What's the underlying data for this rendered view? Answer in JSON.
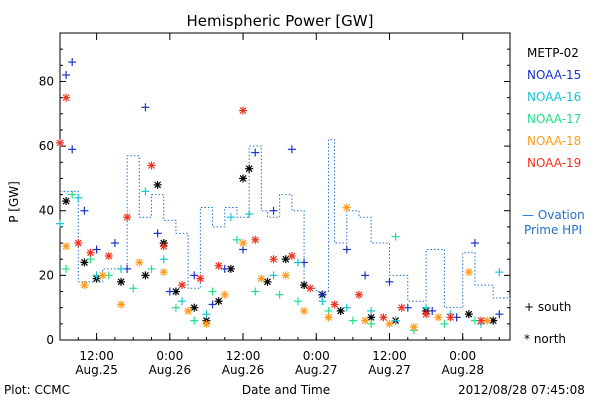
{
  "chart_data": {
    "type": "scatter",
    "title": "Hemispheric Power [GW]",
    "ylabel": "P [GW]",
    "xlabel": "Date and Time",
    "ylim": [
      0,
      95
    ],
    "yticks": [
      0,
      20,
      40,
      60,
      80
    ],
    "xlim": [
      "2012-08-25 06:00",
      "2012-08-28 07:45"
    ],
    "xticks": [
      {
        "at": "2012-08-25 12:00",
        "time": "12:00",
        "date": "Aug.25"
      },
      {
        "at": "2012-08-26 00:00",
        "time": "0:00",
        "date": "Aug.26"
      },
      {
        "at": "2012-08-26 12:00",
        "time": "12:00",
        "date": "Aug.26"
      },
      {
        "at": "2012-08-27 00:00",
        "time": "0:00",
        "date": "Aug.27"
      },
      {
        "at": "2012-08-27 12:00",
        "time": "12:00",
        "date": "Aug.27"
      },
      {
        "at": "2012-08-28 00:00",
        "time": "0:00",
        "date": "Aug.28"
      }
    ],
    "footer_left": "Plot: CCMC",
    "footer_right": "2012/08/28 07:45:08",
    "legend_placement": "right",
    "symbol_legend": [
      {
        "symbol": "+",
        "label": "south"
      },
      {
        "symbol": "*",
        "label": "north"
      }
    ],
    "ovation_label_line1": "— Ovation",
    "ovation_label_line2": "Prime HPI",
    "ovation_color": "#1f6fd0",
    "ovation": {
      "name": "Ovation Prime HPI",
      "t": [
        "2012-08-25 06:00",
        "2012-08-25 09:00",
        "2012-08-25 13:00",
        "2012-08-25 17:00",
        "2012-08-25 19:00",
        "2012-08-25 21:00",
        "2012-08-25 23:00",
        "2012-08-26 01:00",
        "2012-08-26 03:00",
        "2012-08-26 05:00",
        "2012-08-26 07:00",
        "2012-08-26 09:00",
        "2012-08-26 11:00",
        "2012-08-26 13:00",
        "2012-08-26 15:00",
        "2012-08-26 16:00",
        "2012-08-26 18:00",
        "2012-08-26 20:00",
        "2012-08-26 22:00",
        "2012-08-27 00:00",
        "2012-08-27 02:00",
        "2012-08-27 03:00",
        "2012-08-27 05:00",
        "2012-08-27 07:00",
        "2012-08-27 09:00",
        "2012-08-27 12:00",
        "2012-08-27 15:00",
        "2012-08-27 18:00",
        "2012-08-27 21:00",
        "2012-08-28 00:00",
        "2012-08-28 02:00",
        "2012-08-28 05:00",
        "2012-08-28 07:45"
      ],
      "v": [
        46,
        18,
        22,
        57,
        38,
        45,
        37,
        33,
        16,
        41,
        35,
        41,
        38,
        60,
        40,
        38,
        45,
        40,
        16,
        15,
        62,
        30,
        40,
        38,
        30,
        20,
        12,
        28,
        10,
        27,
        17,
        13,
        10
      ]
    },
    "series": [
      {
        "name": "METP-02",
        "color": "#000000",
        "symbol": "*",
        "points": [
          [
            "2012-08-25 07:00",
            43
          ],
          [
            "2012-08-25 10:00",
            24
          ],
          [
            "2012-08-25 12:00",
            19
          ],
          [
            "2012-08-25 16:00",
            18
          ],
          [
            "2012-08-25 20:00",
            20
          ],
          [
            "2012-08-25 22:00",
            48
          ],
          [
            "2012-08-25 23:00",
            30
          ],
          [
            "2012-08-26 01:00",
            15
          ],
          [
            "2012-08-26 04:00",
            10
          ],
          [
            "2012-08-26 06:00",
            6
          ],
          [
            "2012-08-26 08:00",
            12
          ],
          [
            "2012-08-26 10:00",
            22
          ],
          [
            "2012-08-26 12:00",
            50
          ],
          [
            "2012-08-26 13:00",
            53
          ],
          [
            "2012-08-26 16:00",
            18
          ],
          [
            "2012-08-26 19:00",
            25
          ],
          [
            "2012-08-26 22:00",
            17
          ],
          [
            "2012-08-27 01:00",
            14
          ],
          [
            "2012-08-27 04:00",
            9
          ],
          [
            "2012-08-27 09:00",
            7
          ],
          [
            "2012-08-27 13:00",
            6
          ],
          [
            "2012-08-27 18:00",
            9
          ],
          [
            "2012-08-28 01:00",
            8
          ],
          [
            "2012-08-28 05:00",
            6
          ]
        ]
      },
      {
        "name": "NOAA-15",
        "color": "#1a33cc",
        "symbol": "+",
        "points": [
          [
            "2012-08-25 07:00",
            82
          ],
          [
            "2012-08-25 08:00",
            86
          ],
          [
            "2012-08-25 08:00",
            59
          ],
          [
            "2012-08-25 10:00",
            40
          ],
          [
            "2012-08-25 12:00",
            28
          ],
          [
            "2012-08-25 15:00",
            30
          ],
          [
            "2012-08-25 17:00",
            22
          ],
          [
            "2012-08-25 20:00",
            72
          ],
          [
            "2012-08-25 22:00",
            33
          ],
          [
            "2012-08-26 00:00",
            15
          ],
          [
            "2012-08-26 04:00",
            20
          ],
          [
            "2012-08-26 07:00",
            11
          ],
          [
            "2012-08-26 09:00",
            22
          ],
          [
            "2012-08-26 12:00",
            28
          ],
          [
            "2012-08-26 14:00",
            58
          ],
          [
            "2012-08-26 17:00",
            40
          ],
          [
            "2012-08-26 20:00",
            59
          ],
          [
            "2012-08-26 22:00",
            24
          ],
          [
            "2012-08-27 01:00",
            14
          ],
          [
            "2012-08-27 05:00",
            28
          ],
          [
            "2012-08-27 08:00",
            20
          ],
          [
            "2012-08-27 12:00",
            18
          ],
          [
            "2012-08-27 15:00",
            10
          ],
          [
            "2012-08-27 19:00",
            9
          ],
          [
            "2012-08-27 23:00",
            7
          ],
          [
            "2012-08-28 02:00",
            30
          ],
          [
            "2012-08-28 06:00",
            8
          ]
        ]
      },
      {
        "name": "NOAA-16",
        "color": "#19c3d6",
        "symbol": "+",
        "points": [
          [
            "2012-08-25 06:00",
            36
          ],
          [
            "2012-08-25 09:00",
            44
          ],
          [
            "2012-08-25 12:00",
            20
          ],
          [
            "2012-08-25 16:00",
            22
          ],
          [
            "2012-08-25 20:00",
            46
          ],
          [
            "2012-08-25 23:00",
            25
          ],
          [
            "2012-08-26 02:00",
            12
          ],
          [
            "2012-08-26 06:00",
            8
          ],
          [
            "2012-08-26 10:00",
            38
          ],
          [
            "2012-08-26 13:00",
            39
          ],
          [
            "2012-08-26 17:00",
            20
          ],
          [
            "2012-08-26 21:00",
            24
          ],
          [
            "2012-08-27 01:00",
            12
          ],
          [
            "2012-08-27 05:00",
            10
          ],
          [
            "2012-08-27 09:00",
            9
          ],
          [
            "2012-08-27 13:00",
            6
          ],
          [
            "2012-08-27 18:00",
            10
          ],
          [
            "2012-08-27 22:00",
            8
          ],
          [
            "2012-08-28 03:00",
            5
          ],
          [
            "2012-08-28 06:00",
            21
          ]
        ]
      },
      {
        "name": "NOAA-17",
        "color": "#22e08a",
        "symbol": "+",
        "points": [
          [
            "2012-08-25 07:00",
            22
          ],
          [
            "2012-08-25 08:00",
            45
          ],
          [
            "2012-08-25 11:00",
            25
          ],
          [
            "2012-08-25 14:00",
            20
          ],
          [
            "2012-08-25 18:00",
            16
          ],
          [
            "2012-08-25 21:00",
            22
          ],
          [
            "2012-08-26 01:00",
            10
          ],
          [
            "2012-08-26 04:00",
            6
          ],
          [
            "2012-08-26 07:00",
            15
          ],
          [
            "2012-08-26 11:00",
            31
          ],
          [
            "2012-08-26 14:00",
            15
          ],
          [
            "2012-08-26 18:00",
            14
          ],
          [
            "2012-08-26 21:00",
            12
          ],
          [
            "2012-08-27 02:00",
            9
          ],
          [
            "2012-08-27 06:00",
            6
          ],
          [
            "2012-08-27 09:00",
            5
          ],
          [
            "2012-08-27 13:00",
            32
          ],
          [
            "2012-08-27 16:00",
            3
          ],
          [
            "2012-08-27 21:00",
            5
          ],
          [
            "2012-08-28 02:00",
            6
          ]
        ]
      },
      {
        "name": "NOAA-18",
        "color": "#ff9a1a",
        "symbol": "*",
        "points": [
          [
            "2012-08-25 07:00",
            29
          ],
          [
            "2012-08-25 10:00",
            17
          ],
          [
            "2012-08-25 13:00",
            20
          ],
          [
            "2012-08-25 16:00",
            11
          ],
          [
            "2012-08-25 19:00",
            24
          ],
          [
            "2012-08-25 23:00",
            21
          ],
          [
            "2012-08-26 03:00",
            9
          ],
          [
            "2012-08-26 06:00",
            5
          ],
          [
            "2012-08-26 09:00",
            14
          ],
          [
            "2012-08-26 12:00",
            30
          ],
          [
            "2012-08-26 15:00",
            19
          ],
          [
            "2012-08-26 19:00",
            20
          ],
          [
            "2012-08-26 22:00",
            9
          ],
          [
            "2012-08-27 02:00",
            7
          ],
          [
            "2012-08-27 05:00",
            41
          ],
          [
            "2012-08-27 08:00",
            6
          ],
          [
            "2012-08-27 12:00",
            5
          ],
          [
            "2012-08-27 16:00",
            4
          ],
          [
            "2012-08-27 20:00",
            7
          ],
          [
            "2012-08-28 01:00",
            21
          ],
          [
            "2012-08-28 04:00",
            6
          ]
        ]
      },
      {
        "name": "NOAA-19",
        "color": "#ee3322",
        "symbol": "*",
        "points": [
          [
            "2012-08-25 06:00",
            61
          ],
          [
            "2012-08-25 07:00",
            75
          ],
          [
            "2012-08-25 09:00",
            30
          ],
          [
            "2012-08-25 11:00",
            27
          ],
          [
            "2012-08-25 14:00",
            26
          ],
          [
            "2012-08-25 17:00",
            38
          ],
          [
            "2012-08-25 21:00",
            54
          ],
          [
            "2012-08-25 23:00",
            29
          ],
          [
            "2012-08-26 02:00",
            17
          ],
          [
            "2012-08-26 05:00",
            19
          ],
          [
            "2012-08-26 08:00",
            23
          ],
          [
            "2012-08-26 12:00",
            71
          ],
          [
            "2012-08-26 14:00",
            31
          ],
          [
            "2012-08-26 17:00",
            25
          ],
          [
            "2012-08-26 20:00",
            26
          ],
          [
            "2012-08-26 23:00",
            16
          ],
          [
            "2012-08-27 03:00",
            11
          ],
          [
            "2012-08-27 07:00",
            14
          ],
          [
            "2012-08-27 11:00",
            7
          ],
          [
            "2012-08-27 14:00",
            10
          ],
          [
            "2012-08-27 18:00",
            8
          ],
          [
            "2012-08-27 22:00",
            7
          ],
          [
            "2012-08-28 03:00",
            6
          ]
        ]
      }
    ]
  }
}
